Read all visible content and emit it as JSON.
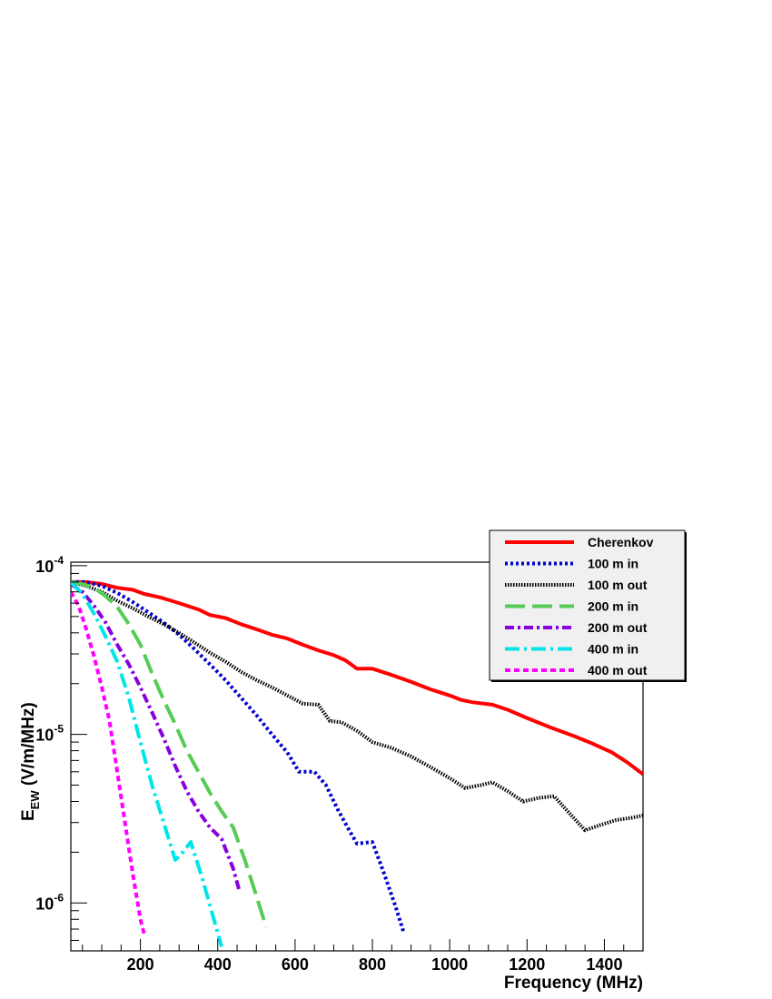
{
  "chart_data": {
    "type": "line",
    "title": "",
    "xlabel": "Frequency (MHz)",
    "ylabel": "E_EW (V/m/MHz)",
    "ylabel_main": "E",
    "ylabel_sub": "EW",
    "ylabel_unit": " (V/m/MHz)",
    "xlim": [
      20,
      1500
    ],
    "ylim": [
      5.2e-07,
      0.000105
    ],
    "yscale": "log",
    "grid": false,
    "legend_position": "top-right",
    "x_ticks": [
      200,
      400,
      600,
      800,
      1000,
      1200,
      1400
    ],
    "y_major_ticks": [
      {
        "value": 1e-06,
        "base": "10",
        "exp": "-6"
      },
      {
        "value": 1e-05,
        "base": "10",
        "exp": "-5"
      },
      {
        "value": 0.0001,
        "base": "10",
        "exp": "-4"
      }
    ],
    "series": [
      {
        "name": "Cherenkov",
        "color": "#ff0000",
        "dash": "solid",
        "width": 4,
        "points": [
          [
            20,
            8e-05
          ],
          [
            60,
            8e-05
          ],
          [
            100,
            7.8e-05
          ],
          [
            140,
            7.4e-05
          ],
          [
            180,
            7.2e-05
          ],
          [
            210,
            6.8e-05
          ],
          [
            250,
            6.5e-05
          ],
          [
            280,
            6.2e-05
          ],
          [
            310,
            5.9e-05
          ],
          [
            350,
            5.5e-05
          ],
          [
            380,
            5.1e-05
          ],
          [
            420,
            4.9e-05
          ],
          [
            460,
            4.5e-05
          ],
          [
            500,
            4.2e-05
          ],
          [
            540,
            3.9e-05
          ],
          [
            580,
            3.7e-05
          ],
          [
            620,
            3.4e-05
          ],
          [
            660,
            3.15e-05
          ],
          [
            700,
            2.95e-05
          ],
          [
            730,
            2.75e-05
          ],
          [
            760,
            2.45e-05
          ],
          [
            800,
            2.45e-05
          ],
          [
            850,
            2.25e-05
          ],
          [
            900,
            2.05e-05
          ],
          [
            950,
            1.85e-05
          ],
          [
            1000,
            1.7e-05
          ],
          [
            1030,
            1.6e-05
          ],
          [
            1060,
            1.55e-05
          ],
          [
            1110,
            1.5e-05
          ],
          [
            1150,
            1.4e-05
          ],
          [
            1200,
            1.25e-05
          ],
          [
            1260,
            1.1e-05
          ],
          [
            1320,
            9.8e-06
          ],
          [
            1370,
            8.8e-06
          ],
          [
            1420,
            7.8e-06
          ],
          [
            1460,
            6.8e-06
          ],
          [
            1500,
            5.8e-06
          ]
        ]
      },
      {
        "name": "100 m in",
        "color": "#0000cc",
        "dash": "dotted",
        "width": 4,
        "points": [
          [
            20,
            8e-05
          ],
          [
            60,
            8e-05
          ],
          [
            100,
            7.6e-05
          ],
          [
            140,
            6.9e-05
          ],
          [
            180,
            6.1e-05
          ],
          [
            220,
            5.3e-05
          ],
          [
            260,
            4.6e-05
          ],
          [
            300,
            3.9e-05
          ],
          [
            340,
            3.2e-05
          ],
          [
            380,
            2.6e-05
          ],
          [
            420,
            2.1e-05
          ],
          [
            460,
            1.65e-05
          ],
          [
            500,
            1.3e-05
          ],
          [
            540,
            1e-05
          ],
          [
            580,
            7.8e-06
          ],
          [
            610,
            6e-06
          ],
          [
            650,
            6e-06
          ],
          [
            680,
            5e-06
          ],
          [
            710,
            3.6e-06
          ],
          [
            740,
            2.7e-06
          ],
          [
            760,
            2.25e-06
          ],
          [
            800,
            2.3e-06
          ],
          [
            830,
            1.5e-06
          ],
          [
            860,
            9.5e-07
          ],
          [
            880,
            6.8e-07
          ]
        ]
      },
      {
        "name": "100 m out",
        "color": "#000000",
        "dash": "densedot",
        "width": 4,
        "points": [
          [
            20,
            8e-05
          ],
          [
            60,
            7.6e-05
          ],
          [
            100,
            7e-05
          ],
          [
            140,
            6.2e-05
          ],
          [
            180,
            5.6e-05
          ],
          [
            220,
            5e-05
          ],
          [
            260,
            4.5e-05
          ],
          [
            300,
            4e-05
          ],
          [
            340,
            3.5e-05
          ],
          [
            380,
            3.05e-05
          ],
          [
            420,
            2.7e-05
          ],
          [
            460,
            2.35e-05
          ],
          [
            500,
            2.1e-05
          ],
          [
            540,
            1.9e-05
          ],
          [
            580,
            1.7e-05
          ],
          [
            620,
            1.52e-05
          ],
          [
            660,
            1.5e-05
          ],
          [
            690,
            1.2e-05
          ],
          [
            720,
            1.18e-05
          ],
          [
            760,
            1.05e-05
          ],
          [
            800,
            9e-06
          ],
          [
            850,
            8.3e-06
          ],
          [
            900,
            7.4e-06
          ],
          [
            950,
            6.4e-06
          ],
          [
            1000,
            5.5e-06
          ],
          [
            1040,
            4.8e-06
          ],
          [
            1080,
            5e-06
          ],
          [
            1110,
            5.2e-06
          ],
          [
            1150,
            4.6e-06
          ],
          [
            1190,
            4e-06
          ],
          [
            1230,
            4.2e-06
          ],
          [
            1270,
            4.3e-06
          ],
          [
            1310,
            3.4e-06
          ],
          [
            1350,
            2.7e-06
          ],
          [
            1390,
            2.9e-06
          ],
          [
            1430,
            3.1e-06
          ],
          [
            1470,
            3.2e-06
          ],
          [
            1500,
            3.3e-06
          ]
        ]
      },
      {
        "name": "200 m in",
        "color": "#55cc55",
        "dash": "longdash",
        "width": 4,
        "points": [
          [
            20,
            8e-05
          ],
          [
            50,
            7.8e-05
          ],
          [
            80,
            7.4e-05
          ],
          [
            110,
            6.6e-05
          ],
          [
            140,
            5.7e-05
          ],
          [
            170,
            4.5e-05
          ],
          [
            200,
            3.4e-05
          ],
          [
            230,
            2.3e-05
          ],
          [
            260,
            1.6e-05
          ],
          [
            290,
            1.15e-05
          ],
          [
            320,
            8e-06
          ],
          [
            350,
            6e-06
          ],
          [
            380,
            4.5e-06
          ],
          [
            410,
            3.5e-06
          ],
          [
            440,
            2.8e-06
          ],
          [
            470,
            1.8e-06
          ],
          [
            500,
            1.1e-06
          ],
          [
            525,
            7.2e-07
          ]
        ]
      },
      {
        "name": "200 m out",
        "color": "#8800dd",
        "dash": "dashdot",
        "width": 4,
        "points": [
          [
            20,
            7.8e-05
          ],
          [
            50,
            7e-05
          ],
          [
            80,
            5.8e-05
          ],
          [
            110,
            4.6e-05
          ],
          [
            140,
            3.4e-05
          ],
          [
            170,
            2.6e-05
          ],
          [
            200,
            1.9e-05
          ],
          [
            230,
            1.35e-05
          ],
          [
            260,
            9.5e-06
          ],
          [
            290,
            6.5e-06
          ],
          [
            320,
            4.6e-06
          ],
          [
            350,
            3.5e-06
          ],
          [
            380,
            2.8e-06
          ],
          [
            410,
            2.4e-06
          ],
          [
            440,
            1.6e-06
          ],
          [
            455,
            1.2e-06
          ]
        ]
      },
      {
        "name": "400 m in",
        "color": "#00e6e6",
        "dash": "dashdot2",
        "width": 4,
        "points": [
          [
            20,
            8e-05
          ],
          [
            50,
            6.8e-05
          ],
          [
            80,
            5.2e-05
          ],
          [
            110,
            3.8e-05
          ],
          [
            140,
            2.7e-05
          ],
          [
            170,
            1.65e-05
          ],
          [
            200,
            9e-06
          ],
          [
            230,
            5e-06
          ],
          [
            260,
            3e-06
          ],
          [
            290,
            1.8e-06
          ],
          [
            310,
            2e-06
          ],
          [
            330,
            2.3e-06
          ],
          [
            360,
            1.4e-06
          ],
          [
            390,
            8e-07
          ],
          [
            410,
            5.5e-07
          ]
        ]
      },
      {
        "name": "400 m out",
        "color": "#ff00ff",
        "dash": "shortdash",
        "width": 4,
        "points": [
          [
            20,
            7e-05
          ],
          [
            40,
            5.8e-05
          ],
          [
            60,
            4.2e-05
          ],
          [
            80,
            2.9e-05
          ],
          [
            100,
            1.9e-05
          ],
          [
            120,
            1.2e-05
          ],
          [
            140,
            6e-06
          ],
          [
            160,
            3e-06
          ],
          [
            180,
            1.5e-06
          ],
          [
            200,
            8e-07
          ],
          [
            210,
            6.5e-07
          ]
        ]
      }
    ]
  }
}
